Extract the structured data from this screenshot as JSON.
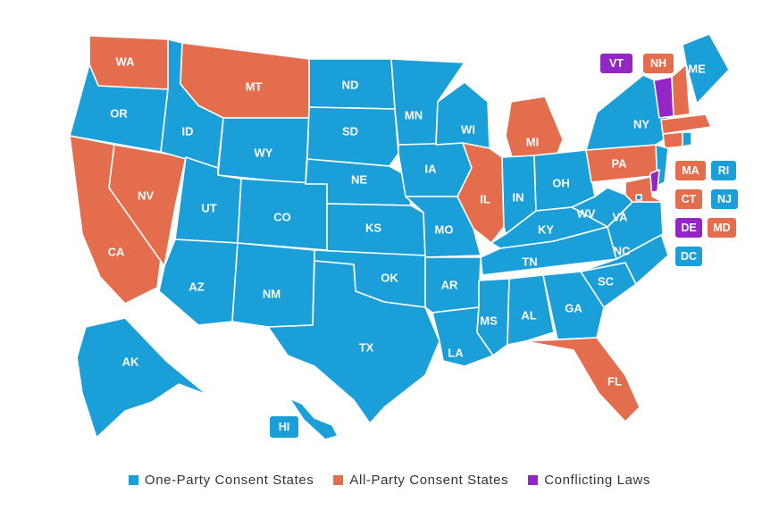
{
  "colors": {
    "one_party": "#1a9fd9",
    "all_party": "#e46d4e",
    "conflicting": "#9425c6"
  },
  "legend": [
    {
      "key": "one_party",
      "label": "One-Party Consent States"
    },
    {
      "key": "all_party",
      "label": "All-Party Consent States"
    },
    {
      "key": "conflicting",
      "label": "Conflicting Laws"
    }
  ],
  "states": {
    "WA": "all_party",
    "OR": "one_party",
    "CA": "all_party",
    "NV": "all_party",
    "ID": "one_party",
    "MT": "all_party",
    "WY": "one_party",
    "UT": "one_party",
    "AZ": "one_party",
    "CO": "one_party",
    "NM": "one_party",
    "ND": "one_party",
    "SD": "one_party",
    "NE": "one_party",
    "KS": "one_party",
    "OK": "one_party",
    "TX": "one_party",
    "MN": "one_party",
    "IA": "one_party",
    "MO": "one_party",
    "AR": "one_party",
    "LA": "one_party",
    "WI": "one_party",
    "IL": "all_party",
    "MI": "all_party",
    "IN": "one_party",
    "OH": "one_party",
    "KY": "one_party",
    "TN": "one_party",
    "MS": "one_party",
    "AL": "one_party",
    "GA": "one_party",
    "FL": "all_party",
    "SC": "one_party",
    "NC": "one_party",
    "VA": "one_party",
    "WV": "one_party",
    "PA": "all_party",
    "NY": "one_party",
    "VT": "conflicting",
    "NH": "all_party",
    "ME": "one_party",
    "MA": "all_party",
    "CT": "all_party",
    "RI": "one_party",
    "NJ": "one_party",
    "DE": "conflicting",
    "MD": "all_party",
    "DC": "one_party",
    "AK": "one_party",
    "HI": "one_party"
  },
  "chips": [
    "VT",
    "NH",
    "MA",
    "RI",
    "CT",
    "NJ",
    "DE",
    "MD",
    "DC",
    "HI"
  ]
}
